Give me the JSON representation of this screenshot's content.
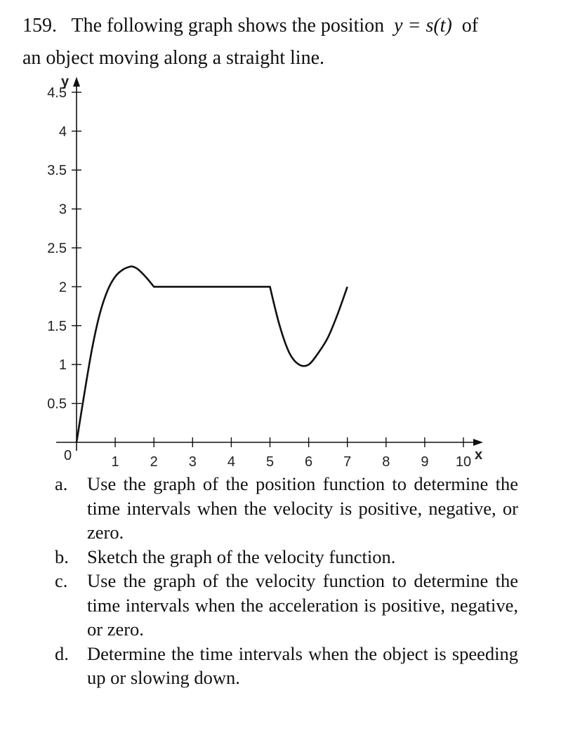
{
  "problem": {
    "number": "159.",
    "text_before_math": "The following graph shows the position",
    "math": "y = s(t)",
    "text_after_math": "of",
    "line2": "an object moving along a straight line."
  },
  "chart_data": {
    "type": "line",
    "xlabel": "x",
    "ylabel": "y",
    "xlim": [
      0,
      10
    ],
    "ylim": [
      0,
      4.5
    ],
    "origin_label": "0",
    "x_ticks": [
      "1",
      "2",
      "3",
      "4",
      "5",
      "6",
      "7",
      "8",
      "9",
      "10"
    ],
    "y_ticks": [
      "0.5",
      "1",
      "1.5",
      "2",
      "2.5",
      "3",
      "3.5",
      "4",
      "4.5"
    ],
    "grid": false,
    "series": [
      {
        "x": [
          0,
          0.2,
          0.4,
          0.6,
          0.8,
          1.0,
          1.2,
          1.4,
          1.5,
          1.6,
          1.8,
          2.0,
          3.0,
          4.0,
          5.0,
          5.25,
          5.5,
          5.75,
          6.0,
          6.25,
          6.5,
          6.75,
          7.0
        ],
        "y": [
          0,
          0.62,
          1.2,
          1.65,
          1.95,
          2.13,
          2.22,
          2.26,
          2.25,
          2.22,
          2.12,
          2.0,
          2.0,
          2.0,
          2.0,
          1.5,
          1.15,
          1.0,
          1.0,
          1.15,
          1.35,
          1.65,
          2.0
        ]
      }
    ]
  },
  "parts": [
    {
      "label": "a.",
      "text": "Use the graph of the position function to determine the time intervals when the velocity is positive, negative, or zero."
    },
    {
      "label": "b.",
      "text": "Sketch the graph of the velocity function."
    },
    {
      "label": "c.",
      "text": "Use the graph of the velocity function to determine the time intervals when the acceleration is positive, negative, or zero."
    },
    {
      "label": "d.",
      "text": "Determine the time intervals when the object is speeding up or slowing down."
    }
  ]
}
